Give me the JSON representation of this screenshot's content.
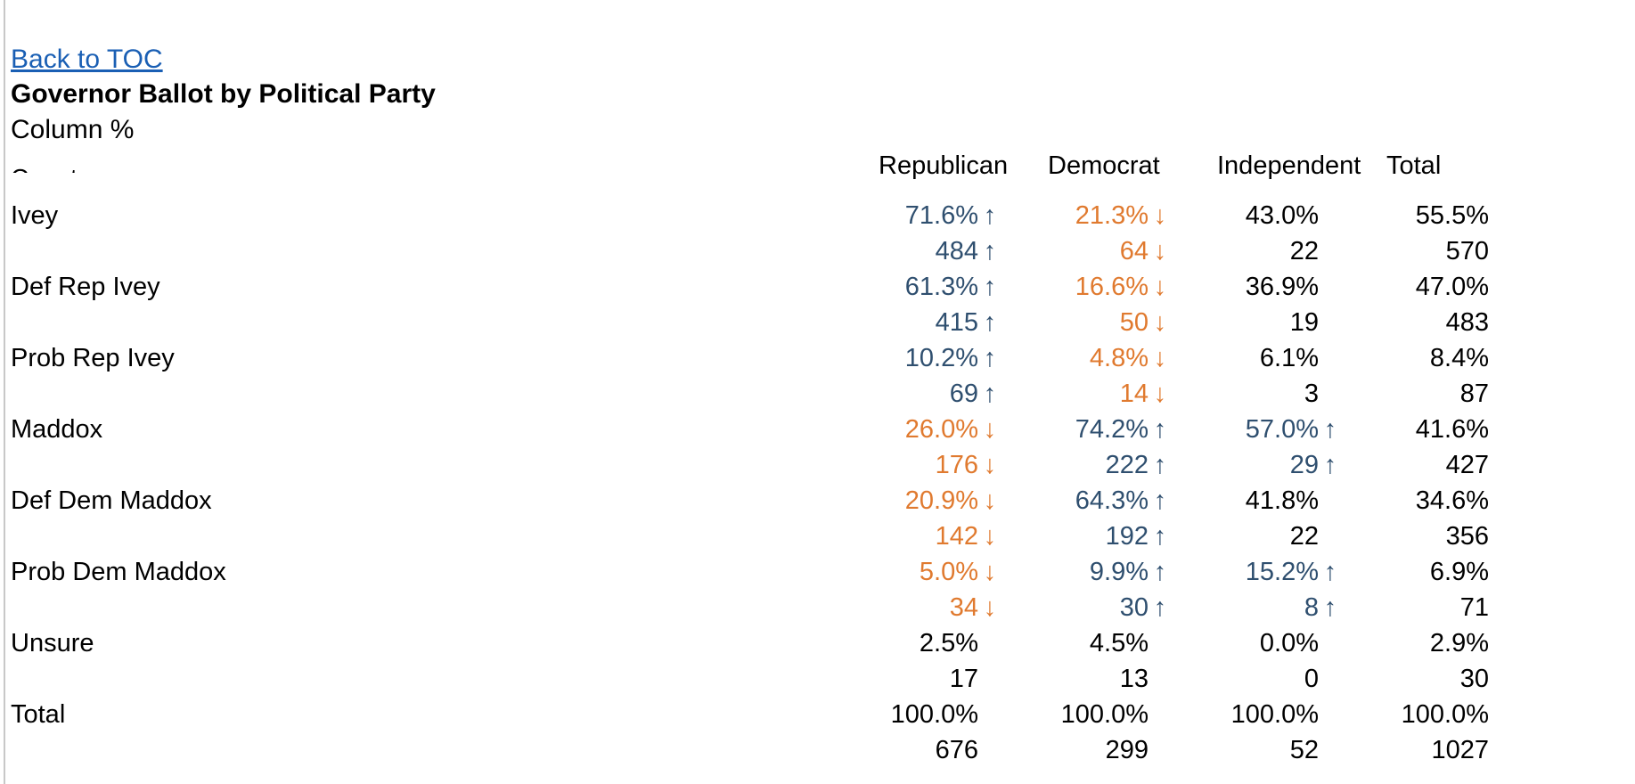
{
  "nav": {
    "back_link": "Back to TOC"
  },
  "title": "Governor Ballot by Political Party",
  "subtitle": "Column %",
  "cut_label": "Count",
  "columns": [
    "Republican",
    "Democrat",
    "Independent",
    "Total"
  ],
  "colors": {
    "up": "#2f4f6f",
    "down": "#e07a2f",
    "link": "#1a5fb4"
  },
  "rows": [
    {
      "label": "Ivey",
      "pct": [
        {
          "v": "71.6%",
          "d": "up"
        },
        {
          "v": "21.3%",
          "d": "down"
        },
        {
          "v": "43.0%",
          "d": ""
        },
        {
          "v": "55.5%",
          "d": ""
        }
      ],
      "cnt": [
        {
          "v": "484",
          "d": "up"
        },
        {
          "v": "64",
          "d": "down"
        },
        {
          "v": "22",
          "d": ""
        },
        {
          "v": "570",
          "d": ""
        }
      ]
    },
    {
      "label": "Def Rep Ivey",
      "pct": [
        {
          "v": "61.3%",
          "d": "up"
        },
        {
          "v": "16.6%",
          "d": "down"
        },
        {
          "v": "36.9%",
          "d": ""
        },
        {
          "v": "47.0%",
          "d": ""
        }
      ],
      "cnt": [
        {
          "v": "415",
          "d": "up"
        },
        {
          "v": "50",
          "d": "down"
        },
        {
          "v": "19",
          "d": ""
        },
        {
          "v": "483",
          "d": ""
        }
      ]
    },
    {
      "label": "Prob Rep Ivey",
      "pct": [
        {
          "v": "10.2%",
          "d": "up"
        },
        {
          "v": "4.8%",
          "d": "down"
        },
        {
          "v": "6.1%",
          "d": ""
        },
        {
          "v": "8.4%",
          "d": ""
        }
      ],
      "cnt": [
        {
          "v": "69",
          "d": "up"
        },
        {
          "v": "14",
          "d": "down"
        },
        {
          "v": "3",
          "d": ""
        },
        {
          "v": "87",
          "d": ""
        }
      ]
    },
    {
      "label": "Maddox",
      "pct": [
        {
          "v": "26.0%",
          "d": "down"
        },
        {
          "v": "74.2%",
          "d": "up"
        },
        {
          "v": "57.0%",
          "d": "up"
        },
        {
          "v": "41.6%",
          "d": ""
        }
      ],
      "cnt": [
        {
          "v": "176",
          "d": "down"
        },
        {
          "v": "222",
          "d": "up"
        },
        {
          "v": "29",
          "d": "up"
        },
        {
          "v": "427",
          "d": ""
        }
      ]
    },
    {
      "label": "Def Dem Maddox",
      "pct": [
        {
          "v": "20.9%",
          "d": "down"
        },
        {
          "v": "64.3%",
          "d": "up"
        },
        {
          "v": "41.8%",
          "d": ""
        },
        {
          "v": "34.6%",
          "d": ""
        }
      ],
      "cnt": [
        {
          "v": "142",
          "d": "down"
        },
        {
          "v": "192",
          "d": "up"
        },
        {
          "v": "22",
          "d": ""
        },
        {
          "v": "356",
          "d": ""
        }
      ]
    },
    {
      "label": "Prob Dem Maddox",
      "pct": [
        {
          "v": "5.0%",
          "d": "down"
        },
        {
          "v": "9.9%",
          "d": "up"
        },
        {
          "v": "15.2%",
          "d": "up"
        },
        {
          "v": "6.9%",
          "d": ""
        }
      ],
      "cnt": [
        {
          "v": "34",
          "d": "down"
        },
        {
          "v": "30",
          "d": "up"
        },
        {
          "v": "8",
          "d": "up"
        },
        {
          "v": "71",
          "d": ""
        }
      ]
    },
    {
      "label": "Unsure",
      "pct": [
        {
          "v": "2.5%",
          "d": ""
        },
        {
          "v": "4.5%",
          "d": ""
        },
        {
          "v": "0.0%",
          "d": ""
        },
        {
          "v": "2.9%",
          "d": ""
        }
      ],
      "cnt": [
        {
          "v": "17",
          "d": ""
        },
        {
          "v": "13",
          "d": ""
        },
        {
          "v": "0",
          "d": ""
        },
        {
          "v": "30",
          "d": ""
        }
      ]
    },
    {
      "label": "Total",
      "pct": [
        {
          "v": "100.0%",
          "d": ""
        },
        {
          "v": "100.0%",
          "d": ""
        },
        {
          "v": "100.0%",
          "d": ""
        },
        {
          "v": "100.0%",
          "d": ""
        }
      ],
      "cnt": [
        {
          "v": "676",
          "d": ""
        },
        {
          "v": "299",
          "d": ""
        },
        {
          "v": "52",
          "d": ""
        },
        {
          "v": "1027",
          "d": ""
        }
      ]
    }
  ]
}
